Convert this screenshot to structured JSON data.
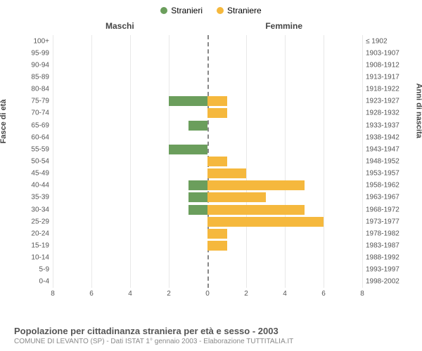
{
  "legend": {
    "male_label": "Stranieri",
    "male_color": "#6b9e5c",
    "female_label": "Straniere",
    "female_color": "#f5b83d"
  },
  "headers": {
    "male": "Maschi",
    "female": "Femmine"
  },
  "axis_labels": {
    "left": "Fasce di età",
    "right": "Anni di nascita"
  },
  "chart": {
    "type": "population_pyramid",
    "xlim": 8,
    "xtick_step": 2,
    "grid_color": "#e8e8e8",
    "center_line_color": "#888888",
    "background_color": "#ffffff",
    "bar_height_ratio": 0.82,
    "rows": [
      {
        "age": "100+",
        "birth": "≤ 1902",
        "male": 0,
        "female": 0
      },
      {
        "age": "95-99",
        "birth": "1903-1907",
        "male": 0,
        "female": 0
      },
      {
        "age": "90-94",
        "birth": "1908-1912",
        "male": 0,
        "female": 0
      },
      {
        "age": "85-89",
        "birth": "1913-1917",
        "male": 0,
        "female": 0
      },
      {
        "age": "80-84",
        "birth": "1918-1922",
        "male": 0,
        "female": 0
      },
      {
        "age": "75-79",
        "birth": "1923-1927",
        "male": 2,
        "female": 1
      },
      {
        "age": "70-74",
        "birth": "1928-1932",
        "male": 0,
        "female": 1
      },
      {
        "age": "65-69",
        "birth": "1933-1937",
        "male": 1,
        "female": 0
      },
      {
        "age": "60-64",
        "birth": "1938-1942",
        "male": 0,
        "female": 0
      },
      {
        "age": "55-59",
        "birth": "1943-1947",
        "male": 2,
        "female": 0
      },
      {
        "age": "50-54",
        "birth": "1948-1952",
        "male": 0,
        "female": 1
      },
      {
        "age": "45-49",
        "birth": "1953-1957",
        "male": 0,
        "female": 2
      },
      {
        "age": "40-44",
        "birth": "1958-1962",
        "male": 1,
        "female": 5
      },
      {
        "age": "35-39",
        "birth": "1963-1967",
        "male": 1,
        "female": 3
      },
      {
        "age": "30-34",
        "birth": "1968-1972",
        "male": 1,
        "female": 5
      },
      {
        "age": "25-29",
        "birth": "1973-1977",
        "male": 0,
        "female": 6
      },
      {
        "age": "20-24",
        "birth": "1978-1982",
        "male": 0,
        "female": 1
      },
      {
        "age": "15-19",
        "birth": "1983-1987",
        "male": 0,
        "female": 1
      },
      {
        "age": "10-14",
        "birth": "1988-1992",
        "male": 0,
        "female": 0
      },
      {
        "age": "5-9",
        "birth": "1993-1997",
        "male": 0,
        "female": 0
      },
      {
        "age": "0-4",
        "birth": "1998-2002",
        "male": 0,
        "female": 0
      }
    ],
    "xticks": [
      8,
      6,
      4,
      2,
      0,
      2,
      4,
      6,
      8
    ]
  },
  "footer": {
    "title": "Popolazione per cittadinanza straniera per età e sesso - 2003",
    "subtitle": "COMUNE DI LEVANTO (SP) - Dati ISTAT 1° gennaio 2003 - Elaborazione TUTTITALIA.IT"
  }
}
